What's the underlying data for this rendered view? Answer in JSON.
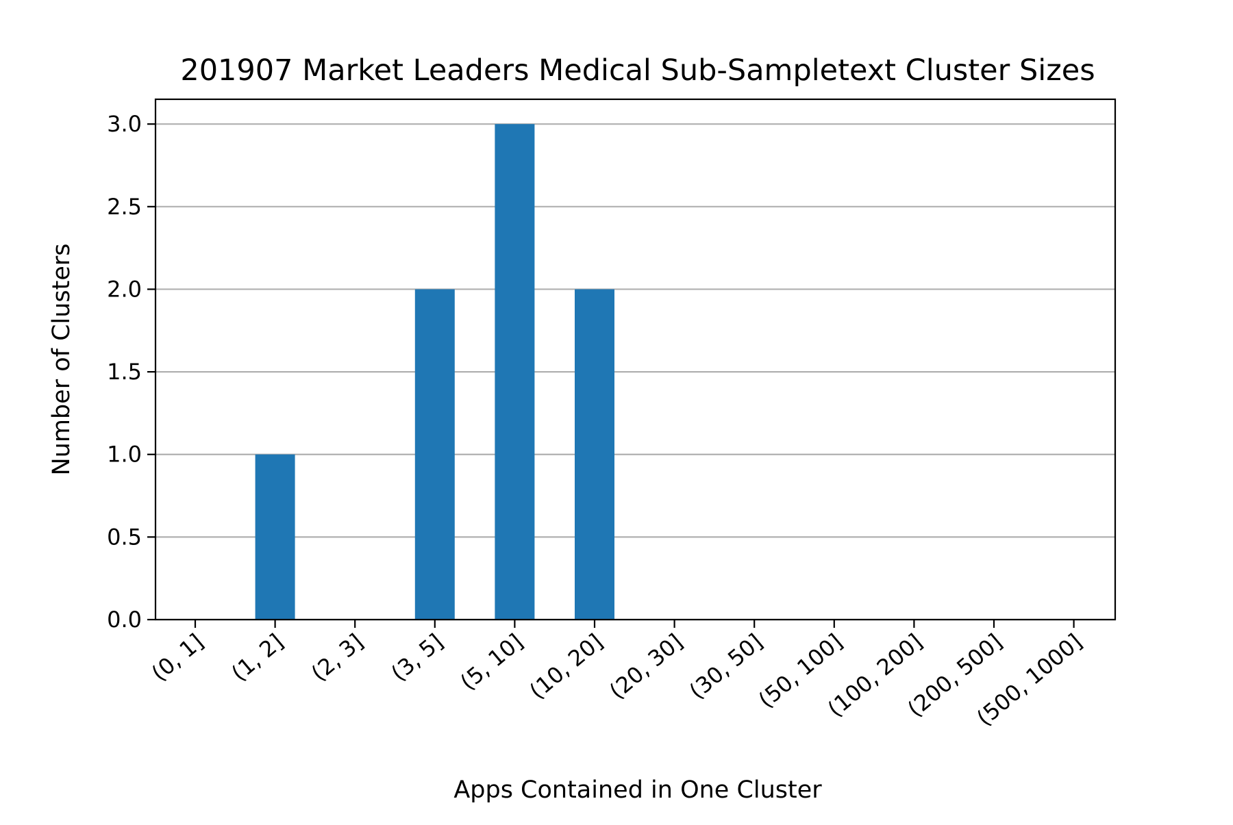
{
  "chart_data": {
    "type": "bar",
    "title": "201907 Market Leaders Medical Sub-Sampletext Cluster Sizes",
    "xlabel": "Apps Contained in One Cluster",
    "ylabel": "Number of Clusters",
    "categories": [
      "(0, 1]",
      "(1, 2]",
      "(2, 3]",
      "(3, 5]",
      "(5, 10]",
      "(10, 20]",
      "(20, 30]",
      "(30, 50]",
      "(50, 100]",
      "(100, 200]",
      "(200, 500]",
      "(500, 1000]"
    ],
    "values": [
      0,
      1,
      0,
      2,
      3,
      2,
      0,
      0,
      0,
      0,
      0,
      0
    ],
    "ylim": [
      0,
      3.15
    ],
    "yticks": [
      "0.0",
      "0.5",
      "1.0",
      "1.5",
      "2.0",
      "2.5",
      "3.0"
    ],
    "grid": "y-axis on",
    "legend": "none",
    "bar_color": "#1f77b4",
    "grid_color": "#b0b0b0"
  }
}
